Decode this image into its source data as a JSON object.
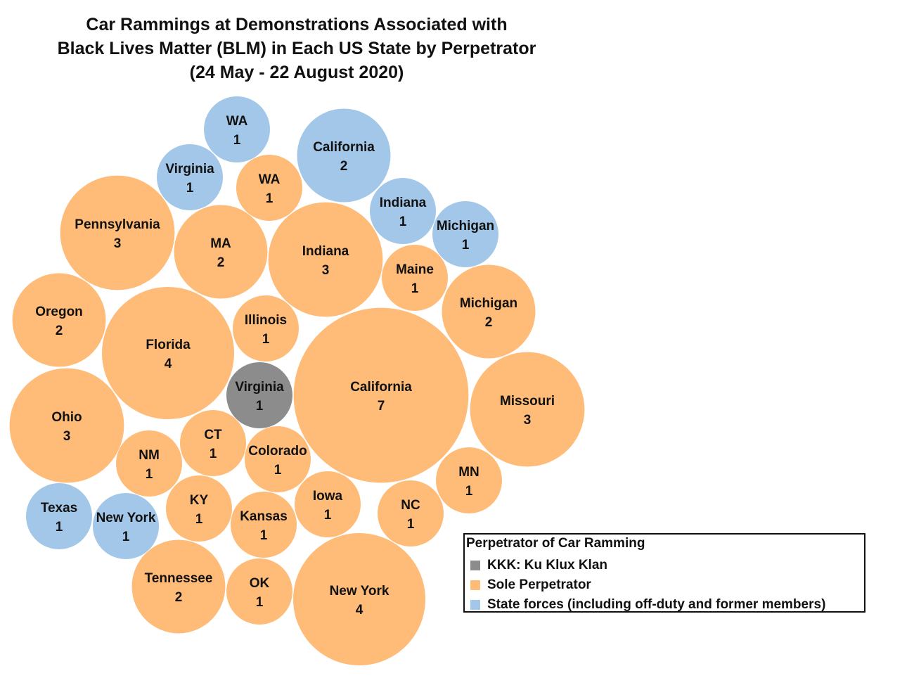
{
  "chart_data": {
    "type": "bubble",
    "title": [
      "Car Rammings at Demonstrations Associated with",
      "Black Lives Matter (BLM) in Each US State by Perpetrator",
      "(24 May - 22 August 2020)"
    ],
    "legend": {
      "title": "Perpetrator of Car Ramming",
      "placement": "bottom-right",
      "entries": [
        {
          "key": "kkk",
          "label": "KKK: Ku Klux Klan",
          "color": "#8c8c8c"
        },
        {
          "key": "sole",
          "label": "Sole Perpetrator",
          "color": "#ffbb78"
        },
        {
          "key": "state",
          "label": "State forces (including off-duty and former members)",
          "color": "#a2c7e8"
        }
      ]
    },
    "bubbles": [
      {
        "state": "WA",
        "value": 1,
        "category": "state"
      },
      {
        "state": "California",
        "value": 2,
        "category": "state"
      },
      {
        "state": "Virginia",
        "value": 1,
        "category": "state"
      },
      {
        "state": "WA",
        "value": 1,
        "category": "sole"
      },
      {
        "state": "Indiana",
        "value": 1,
        "category": "state"
      },
      {
        "state": "Michigan",
        "value": 1,
        "category": "state"
      },
      {
        "state": "Pennsylvania",
        "value": 3,
        "category": "sole"
      },
      {
        "state": "MA",
        "value": 2,
        "category": "sole"
      },
      {
        "state": "Indiana",
        "value": 3,
        "category": "sole"
      },
      {
        "state": "Maine",
        "value": 1,
        "category": "sole"
      },
      {
        "state": "Michigan",
        "value": 2,
        "category": "sole"
      },
      {
        "state": "Oregon",
        "value": 2,
        "category": "sole"
      },
      {
        "state": "Florida",
        "value": 4,
        "category": "sole"
      },
      {
        "state": "Illinois",
        "value": 1,
        "category": "sole"
      },
      {
        "state": "Virginia",
        "value": 1,
        "category": "kkk"
      },
      {
        "state": "California",
        "value": 7,
        "category": "sole"
      },
      {
        "state": "Missouri",
        "value": 3,
        "category": "sole"
      },
      {
        "state": "Ohio",
        "value": 3,
        "category": "sole"
      },
      {
        "state": "CT",
        "value": 1,
        "category": "sole"
      },
      {
        "state": "NM",
        "value": 1,
        "category": "sole"
      },
      {
        "state": "Colorado",
        "value": 1,
        "category": "sole"
      },
      {
        "state": "MN",
        "value": 1,
        "category": "sole"
      },
      {
        "state": "Iowa",
        "value": 1,
        "category": "sole"
      },
      {
        "state": "NC",
        "value": 1,
        "category": "sole"
      },
      {
        "state": "KY",
        "value": 1,
        "category": "sole"
      },
      {
        "state": "Texas",
        "value": 1,
        "category": "state"
      },
      {
        "state": "New York",
        "value": 1,
        "category": "state"
      },
      {
        "state": "Kansas",
        "value": 1,
        "category": "sole"
      },
      {
        "state": "Tennessee",
        "value": 2,
        "category": "sole"
      },
      {
        "state": "OK",
        "value": 1,
        "category": "sole"
      },
      {
        "state": "New York",
        "value": 4,
        "category": "sole"
      }
    ]
  }
}
